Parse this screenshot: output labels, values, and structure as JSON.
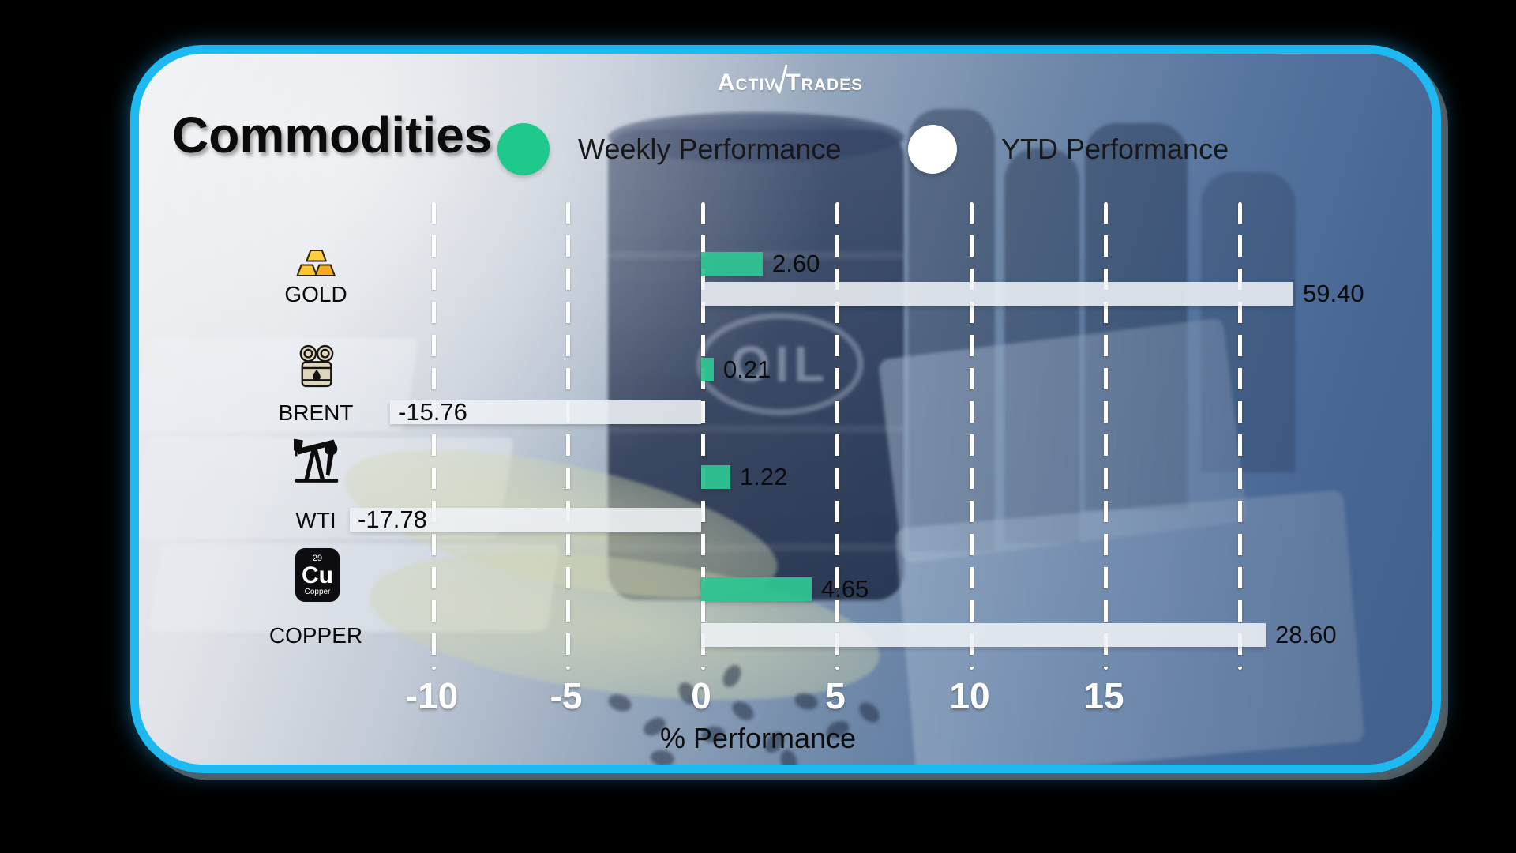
{
  "brand": {
    "word1": "Activ",
    "word2": "Trades"
  },
  "header": {
    "title": "Commodities"
  },
  "legend": [
    {
      "label": "Weekly Performance",
      "color": "#1ec98b"
    },
    {
      "label": "YTD Performance",
      "color": "#ffffff"
    }
  ],
  "background": {
    "oil_text": "OIL"
  },
  "icons": {
    "gold": "gold-bars-icon",
    "brent": "oil-barrels-icon",
    "wti": "oil-pumpjack-icon",
    "copper_element": {
      "number": "29",
      "symbol": "Cu",
      "name": "Copper"
    }
  },
  "chart_data": {
    "type": "bar",
    "orientation": "horizontal",
    "title": "Commodities",
    "xlabel": "% Performance",
    "x_ticks": [
      -10,
      -5,
      0,
      5,
      10,
      15
    ],
    "x_tick_labels": [
      "-10",
      "-5",
      "0",
      "5",
      "10",
      "15"
    ],
    "grid": "dashed-vertical-white",
    "legend_position": "top",
    "categories": [
      "GOLD",
      "BRENT",
      "WTI",
      "COPPER"
    ],
    "series": [
      {
        "name": "Weekly Performance",
        "color": "#2fc492",
        "values": [
          2.6,
          0.21,
          1.22,
          4.65
        ],
        "labels": [
          "2.60",
          "0.21",
          "1.22",
          "4.65"
        ]
      },
      {
        "name": "YTD Performance",
        "color": "#eef2f6",
        "values": [
          59.4,
          -15.76,
          -17.78,
          28.6
        ],
        "labels": [
          "59.40",
          "-15.76",
          "-17.78",
          "28.60"
        ]
      }
    ]
  }
}
